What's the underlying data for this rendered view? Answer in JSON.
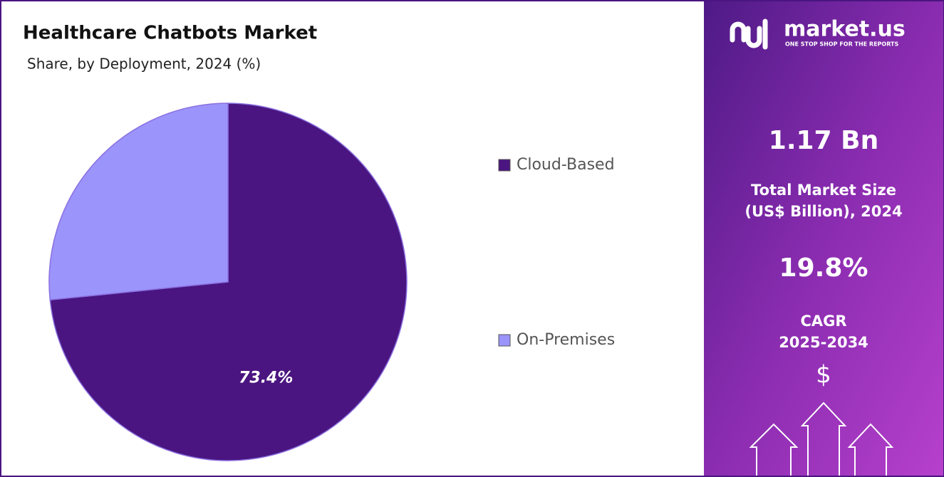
{
  "chart_data": {
    "type": "pie",
    "title": "Healthcare Chatbots Market",
    "subtitle": "Share, by Deployment, 2024 (%)",
    "categories": [
      "Cloud-Based",
      "On-Premises"
    ],
    "values": [
      73.4,
      26.6
    ],
    "value_labels": [
      "73.4%",
      null
    ],
    "colors": [
      "#4a1580",
      "#9b94fb"
    ],
    "legend": "right"
  },
  "panel": {
    "brand": "market.us",
    "tagline": "ONE STOP SHOP FOR THE REPORTS",
    "market_size": "1.17 Bn",
    "market_size_label": [
      "Total Market Size",
      "(US$ Billion), 2024"
    ],
    "cagr": "19.8%",
    "cagr_label": [
      "CAGR",
      "2025-2034"
    ],
    "currency": "$"
  }
}
